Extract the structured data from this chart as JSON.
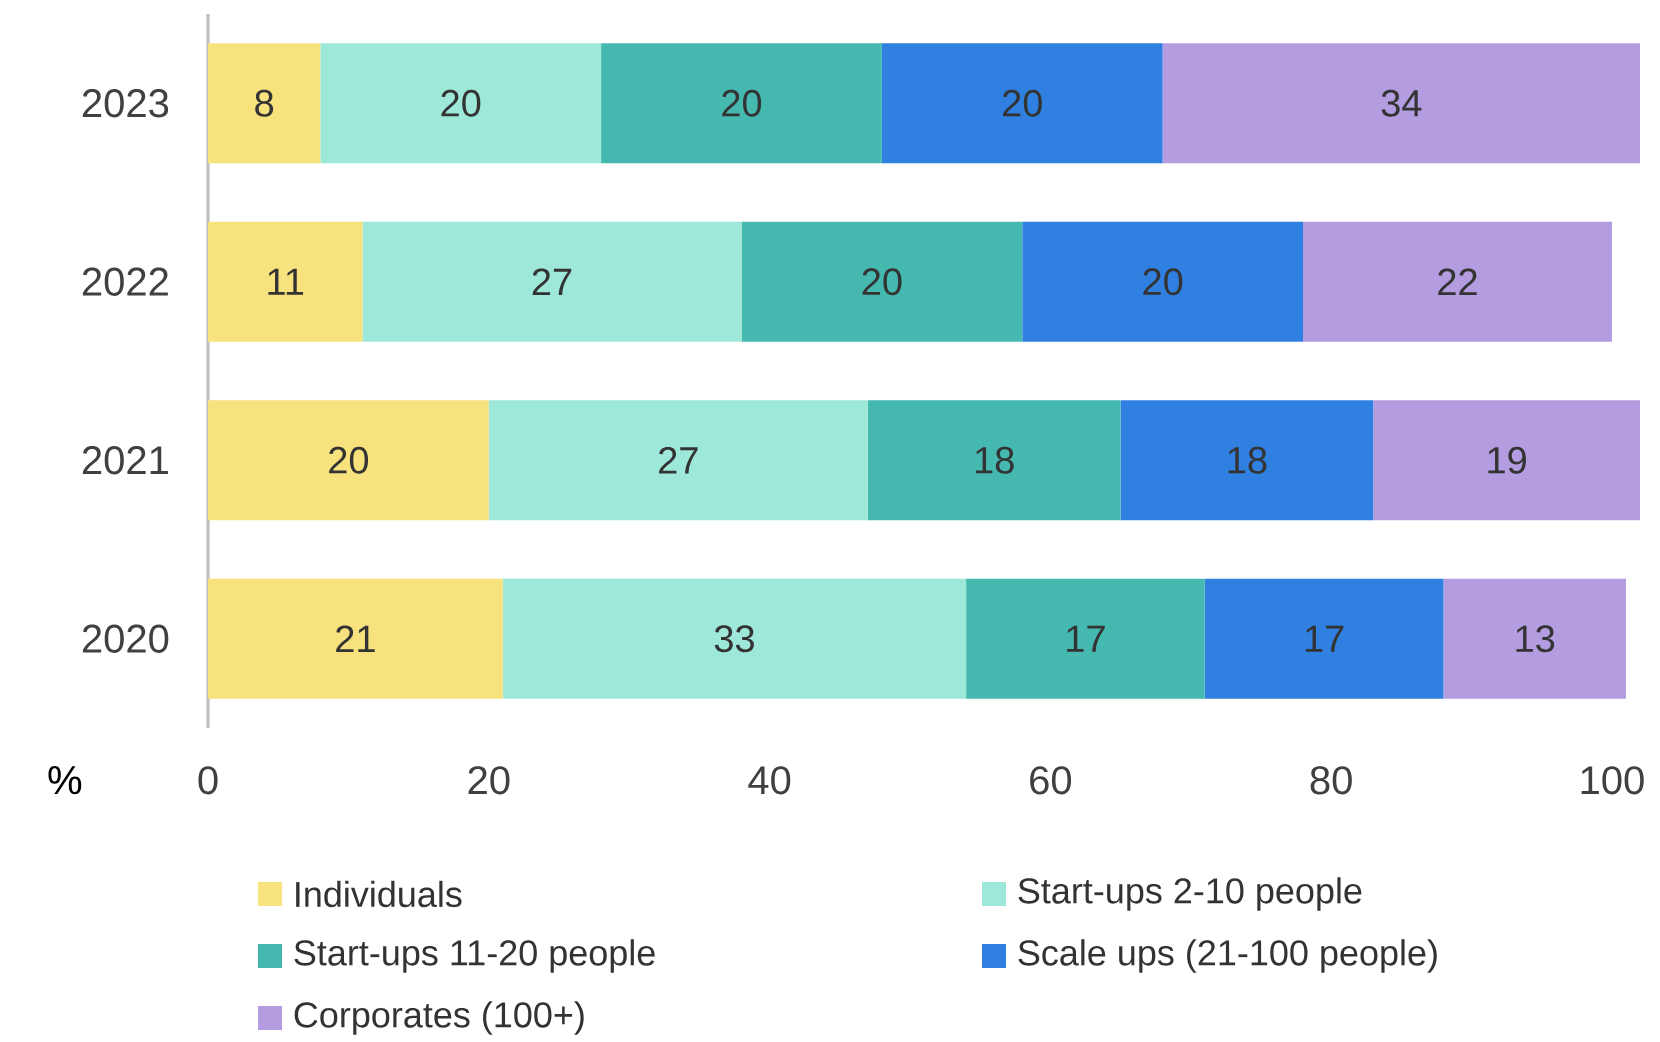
{
  "chart_data": {
    "type": "bar",
    "orientation": "horizontal",
    "stacked": true,
    "xlabel": "%",
    "categories": [
      "2023",
      "2022",
      "2021",
      "2020"
    ],
    "series": [
      {
        "name": "Individuals",
        "color": "#f7e27e",
        "values": [
          8,
          11,
          20,
          21
        ]
      },
      {
        "name": "Start-ups 2-10 people",
        "color": "#9ee8d9",
        "values": [
          20,
          27,
          27,
          33
        ]
      },
      {
        "name": "Start-ups 11-20 people",
        "color": "#45b8b0",
        "values": [
          20,
          20,
          18,
          17
        ]
      },
      {
        "name": "Scale ups (21-100 people)",
        "color": "#2f80e0",
        "values": [
          20,
          20,
          18,
          17
        ]
      },
      {
        "name": "Corporates (100+)",
        "color": "#b39de0",
        "values": [
          34,
          22,
          19,
          13
        ]
      }
    ],
    "xlim": [
      0,
      102
    ],
    "xticks": [
      0,
      20,
      40,
      60,
      80,
      100
    ],
    "grid": false,
    "legend": "bottom",
    "data_labels": true
  }
}
